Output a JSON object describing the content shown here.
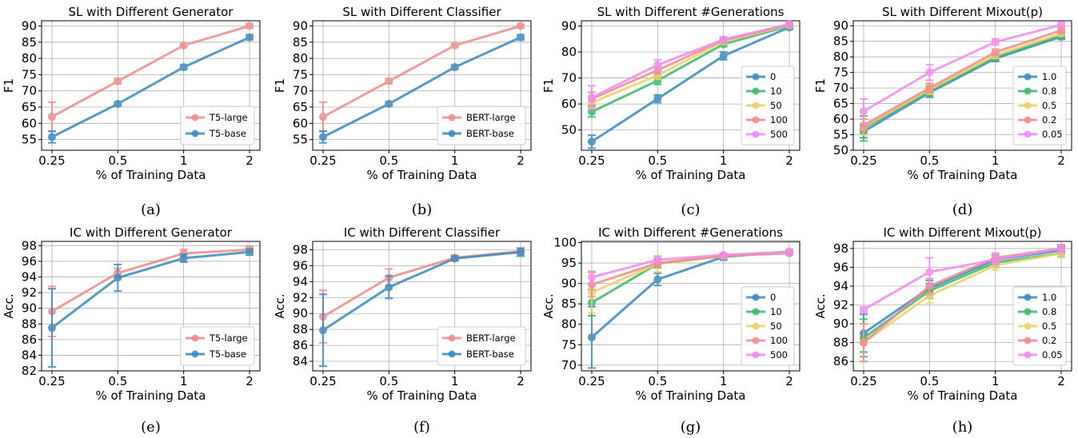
{
  "figure": {
    "captions": [
      "(a)",
      "(b)",
      "(c)",
      "(d)",
      "(e)",
      "(f)",
      "(g)",
      "(h)"
    ]
  },
  "colors": {
    "T5-large": "#f08c8c",
    "T5-base": "#3c8abe",
    "BERT-large": "#f08c8c",
    "BERT-base": "#3c8abe",
    "0": "#3c8abe",
    "10": "#3fb96b",
    "50": "#ead16c",
    "100": "#f08c8c",
    "500": "#f08cee",
    "1.0": "#3c8abe",
    "0.8": "#3fb96b",
    "0.5": "#ead16c",
    "0.2": "#f08c8c",
    "0.05": "#f08cee"
  },
  "chart_data": [
    {
      "type": "line",
      "title": "SL with Different Generator",
      "xlabel": "% of Training Data",
      "ylabel": "F1",
      "categories": [
        "0.25",
        "0.5",
        "1",
        "2"
      ],
      "ylim": [
        51.7,
        91.6
      ],
      "yticks": [
        55,
        60,
        65,
        70,
        75,
        80,
        85,
        90
      ],
      "legend_loc": "lower-right",
      "grid": true,
      "series": [
        {
          "name": "T5-large",
          "values": [
            62.0,
            73.0,
            84.0,
            90.0
          ],
          "err": [
            4.5,
            0.8,
            0.5,
            0.6
          ]
        },
        {
          "name": "T5-base",
          "values": [
            55.8,
            66.0,
            77.3,
            86.5
          ],
          "err": [
            1.8,
            0.6,
            0.7,
            0.8
          ]
        }
      ]
    },
    {
      "type": "line",
      "title": "SL with Different Classifier",
      "xlabel": "% of Training Data",
      "ylabel": "F1",
      "categories": [
        "0.25",
        "0.5",
        "1",
        "2"
      ],
      "ylim": [
        51.7,
        91.6
      ],
      "yticks": [
        55,
        60,
        65,
        70,
        75,
        80,
        85,
        90
      ],
      "legend_loc": "lower-right",
      "grid": true,
      "series": [
        {
          "name": "BERT-large",
          "values": [
            62.0,
            73.0,
            84.0,
            90.0
          ],
          "err": [
            4.5,
            0.8,
            0.5,
            0.6
          ]
        },
        {
          "name": "BERT-base",
          "values": [
            55.8,
            66.0,
            77.3,
            86.5
          ],
          "err": [
            1.8,
            0.6,
            0.7,
            0.8
          ]
        }
      ]
    },
    {
      "type": "line",
      "title": "SL with Different #Generations",
      "xlabel": "% of Training Data",
      "ylabel": "F1",
      "categories": [
        "0.25",
        "0.5",
        "1",
        "2"
      ],
      "ylim": [
        42.2,
        92.0
      ],
      "yticks": [
        50,
        60,
        70,
        80,
        90
      ],
      "legend_loc": "lower-right",
      "grid": true,
      "series": [
        {
          "name": "0",
          "values": [
            45.5,
            62.0,
            78.5,
            89.5
          ],
          "err": [
            2.5,
            1.5,
            1.5,
            0.8
          ]
        },
        {
          "name": "10",
          "values": [
            57.0,
            69.0,
            83.0,
            90.0
          ],
          "err": [
            2.0,
            1.5,
            1.0,
            0.8
          ]
        },
        {
          "name": "50",
          "values": [
            60.5,
            71.0,
            84.0,
            90.3
          ],
          "err": [
            2.0,
            1.5,
            0.8,
            0.5
          ]
        },
        {
          "name": "100",
          "values": [
            62.0,
            73.0,
            84.5,
            90.5
          ],
          "err": [
            2.5,
            1.5,
            0.8,
            0.5
          ]
        },
        {
          "name": "500",
          "values": [
            62.5,
            75.0,
            84.8,
            90.7
          ],
          "err": [
            4.5,
            2.0,
            1.0,
            0.5
          ]
        }
      ]
    },
    {
      "type": "line",
      "title": "SL with Different Mixout(p)",
      "xlabel": "% of Training Data",
      "ylabel": "F1",
      "categories": [
        "0.25",
        "0.5",
        "1",
        "2"
      ],
      "ylim": [
        50.0,
        91.6
      ],
      "yticks": [
        50,
        55,
        60,
        65,
        70,
        75,
        80,
        85,
        90
      ],
      "legend_loc": "lower-right",
      "grid": true,
      "series": [
        {
          "name": "1.0",
          "values": [
            56.0,
            68.5,
            79.5,
            86.5
          ],
          "err": [
            2.0,
            1.5,
            1.0,
            0.8
          ]
        },
        {
          "name": "0.8",
          "values": [
            57.0,
            69.0,
            80.0,
            87.0
          ],
          "err": [
            4.0,
            1.5,
            1.0,
            0.8
          ]
        },
        {
          "name": "0.5",
          "values": [
            57.5,
            69.5,
            80.5,
            87.5
          ],
          "err": [
            2.5,
            1.5,
            1.0,
            0.8
          ]
        },
        {
          "name": "0.2",
          "values": [
            58.0,
            70.0,
            81.5,
            88.5
          ],
          "err": [
            2.0,
            1.5,
            1.0,
            0.8
          ]
        },
        {
          "name": "0.05",
          "values": [
            62.5,
            75.0,
            84.8,
            90.3
          ],
          "err": [
            4.0,
            2.5,
            1.0,
            0.8
          ]
        }
      ]
    },
    {
      "type": "line",
      "title": "IC with Different Generator",
      "xlabel": "% of Training Data",
      "ylabel": "Acc.",
      "categories": [
        "0.25",
        "0.5",
        "1",
        "2"
      ],
      "ylim": [
        82.0,
        98.55
      ],
      "yticks": [
        82,
        84,
        86,
        88,
        90,
        92,
        94,
        96,
        98
      ],
      "legend_loc": "lower-right",
      "grid": true,
      "series": [
        {
          "name": "T5-large",
          "values": [
            89.6,
            94.5,
            97.0,
            97.5
          ],
          "err": [
            3.2,
            0.6,
            0.5,
            0.4
          ]
        },
        {
          "name": "T5-base",
          "values": [
            87.5,
            93.9,
            96.4,
            97.2
          ],
          "err": [
            5.0,
            1.7,
            0.5,
            0.4
          ]
        }
      ]
    },
    {
      "type": "line",
      "title": "IC with Different Classifier",
      "xlabel": "% of Training Data",
      "ylabel": "Acc.",
      "categories": [
        "0.25",
        "0.5",
        "1",
        "2"
      ],
      "ylim": [
        82.8,
        99.05
      ],
      "yticks": [
        84,
        86,
        88,
        90,
        92,
        94,
        96,
        98
      ],
      "legend_loc": "lower-right",
      "grid": true,
      "series": [
        {
          "name": "BERT-large",
          "values": [
            89.6,
            94.5,
            97.0,
            97.8
          ],
          "err": [
            3.3,
            1.1,
            0.3,
            0.4
          ]
        },
        {
          "name": "BERT-base",
          "values": [
            87.9,
            93.3,
            96.9,
            97.7
          ],
          "err": [
            4.5,
            1.4,
            0.3,
            0.5
          ]
        }
      ]
    },
    {
      "type": "line",
      "title": "IC with Different #Generations",
      "xlabel": "% of Training Data",
      "ylabel": "Acc.",
      "categories": [
        "0.25",
        "0.5",
        "1",
        "2"
      ],
      "ylim": [
        68.6,
        100.3
      ],
      "yticks": [
        70,
        75,
        80,
        85,
        90,
        95,
        100
      ],
      "legend_loc": "lower-right",
      "grid": true,
      "series": [
        {
          "name": "0",
          "values": [
            76.8,
            91.0,
            96.5,
            97.8
          ],
          "err": [
            7.5,
            1.5,
            0.8,
            0.5
          ]
        },
        {
          "name": "10",
          "values": [
            85.3,
            94.8,
            96.7,
            97.8
          ],
          "err": [
            3.2,
            1.0,
            0.5,
            0.4
          ]
        },
        {
          "name": "50",
          "values": [
            87.8,
            94.8,
            96.7,
            97.8
          ],
          "err": [
            5.0,
            2.0,
            0.5,
            0.4
          ]
        },
        {
          "name": "100",
          "values": [
            89.7,
            95.0,
            96.8,
            97.4
          ],
          "err": [
            3.0,
            1.0,
            0.5,
            0.4
          ]
        },
        {
          "name": "500",
          "values": [
            91.5,
            95.8,
            97.0,
            97.7
          ],
          "err": [
            1.5,
            0.8,
            0.4,
            0.4
          ]
        }
      ]
    },
    {
      "type": "line",
      "title": "IC with Different Mixout(p)",
      "xlabel": "% of Training Data",
      "ylabel": "Acc.",
      "categories": [
        "0.25",
        "0.5",
        "1",
        "2"
      ],
      "ylim": [
        85.0,
        98.75
      ],
      "yticks": [
        86,
        88,
        90,
        92,
        94,
        96,
        98
      ],
      "legend_loc": "lower-right",
      "grid": true,
      "series": [
        {
          "name": "1.0",
          "values": [
            89.0,
            93.8,
            96.8,
            97.8
          ],
          "err": [
            2.0,
            0.8,
            0.5,
            0.4
          ]
        },
        {
          "name": "0.8",
          "values": [
            88.5,
            93.5,
            96.5,
            97.5
          ],
          "err": [
            2.0,
            0.8,
            0.5,
            0.4
          ]
        },
        {
          "name": "0.5",
          "values": [
            88.0,
            93.0,
            96.2,
            97.5
          ],
          "err": [
            2.0,
            0.8,
            0.5,
            0.4
          ]
        },
        {
          "name": "0.2",
          "values": [
            88.0,
            94.0,
            97.0,
            98.0
          ],
          "err": [
            2.0,
            0.8,
            0.5,
            0.4
          ]
        },
        {
          "name": "0.05",
          "values": [
            91.5,
            95.5,
            96.8,
            98.0
          ],
          "err": [
            0.3,
            1.5,
            0.5,
            0.4
          ]
        }
      ]
    }
  ]
}
